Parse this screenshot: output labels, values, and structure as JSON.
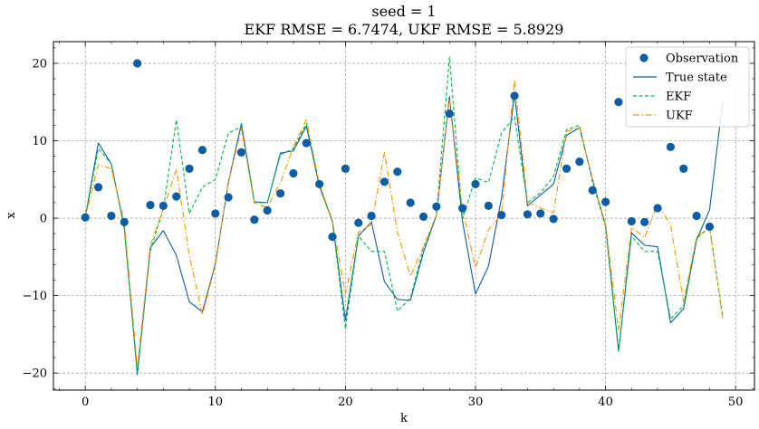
{
  "chart_data": {
    "type": "line",
    "title": "seed = 1",
    "subtitle": "EKF RMSE = 6.7474, UKF RMSE = 5.8929",
    "xlabel": "k",
    "ylabel": "x",
    "xlim": [
      -2.45,
      51.45
    ],
    "ylim": [
      -22.2,
      22.8
    ],
    "xticks": [
      0,
      10,
      20,
      30,
      40,
      50
    ],
    "yticks": [
      -20,
      -10,
      0,
      10,
      20
    ],
    "grid": true,
    "legend_position": "top-right",
    "legend": [
      "Observation",
      "True state",
      "EKF",
      "UKF"
    ],
    "x": [
      0,
      1,
      2,
      3,
      4,
      5,
      6,
      7,
      8,
      9,
      10,
      11,
      12,
      13,
      14,
      15,
      16,
      17,
      18,
      19,
      20,
      21,
      22,
      23,
      24,
      25,
      26,
      27,
      28,
      29,
      30,
      31,
      32,
      33,
      34,
      35,
      36,
      37,
      38,
      39,
      40,
      41,
      42,
      43,
      44,
      45,
      46,
      47,
      48,
      49
    ],
    "series": [
      {
        "name": "Observation",
        "style": "scatter",
        "color": "#0C5DA5",
        "values": [
          0.1,
          4.0,
          0.3,
          -0.5,
          20.0,
          1.7,
          1.6,
          2.8,
          6.4,
          8.8,
          0.6,
          2.7,
          8.5,
          -0.2,
          1.0,
          3.2,
          5.8,
          9.7,
          4.4,
          -2.4,
          6.4,
          -0.6,
          0.3,
          4.7,
          6.0,
          2.0,
          0.2,
          1.5,
          13.5,
          1.3,
          4.4,
          1.6,
          0.4,
          15.8,
          0.5,
          0.6,
          -0.1,
          6.4,
          7.3,
          3.6,
          2.1,
          15.0,
          -0.4,
          -0.5,
          1.3,
          9.2,
          6.4,
          0.3,
          -1.1,
          null
        ]
      },
      {
        "name": "True state",
        "style": "solid",
        "color": "#0C5DA5",
        "values": [
          0.1,
          9.7,
          7.0,
          -1.2,
          -20.2,
          -3.8,
          -1.6,
          -4.8,
          -10.8,
          -12.1,
          -5.9,
          4.6,
          12.2,
          2.1,
          2.0,
          8.4,
          8.7,
          11.9,
          4.1,
          -0.4,
          -13.2,
          -2.3,
          -0.5,
          -8.2,
          -10.5,
          -10.6,
          -4.4,
          0.4,
          15.7,
          -0.4,
          -9.8,
          -6.2,
          2.6,
          16.0,
          1.6,
          3.0,
          4.4,
          10.7,
          11.7,
          5.0,
          -0.9,
          -17.2,
          -1.9,
          -3.5,
          -3.7,
          -13.5,
          -11.7,
          -2.8,
          1.1,
          15.0
        ]
      },
      {
        "name": "EKF",
        "style": "dashed",
        "color": "#00B945",
        "values": [
          0.1,
          9.0,
          7.0,
          -1.4,
          -20.0,
          -4.2,
          1.2,
          12.7,
          0.6,
          4.0,
          5.0,
          11.0,
          11.8,
          2.0,
          2.0,
          8.2,
          9.0,
          12.2,
          4.4,
          -0.5,
          -14.3,
          -2.3,
          -4.3,
          -4.3,
          -12.0,
          -10.3,
          -3.8,
          0.4,
          20.8,
          -0.1,
          5.2,
          4.6,
          11.0,
          13.1,
          2.0,
          3.3,
          5.4,
          11.4,
          12.0,
          4.7,
          -1.1,
          -17.2,
          -2.3,
          -4.3,
          -4.3,
          -13.0,
          -11.3,
          -2.6,
          -1.2,
          -12.6
        ]
      },
      {
        "name": "UKF",
        "style": "dashdot",
        "color": "#FF9500",
        "values": [
          0.1,
          6.9,
          6.4,
          -0.5,
          -19.2,
          -3.5,
          1.2,
          6.3,
          -4.8,
          -12.5,
          -6.1,
          4.6,
          11.6,
          1.9,
          1.4,
          4.6,
          9.2,
          12.7,
          4.4,
          -0.3,
          -9.8,
          -1.8,
          -0.8,
          8.5,
          -1.8,
          -7.5,
          -3.7,
          0.4,
          15.4,
          1.2,
          -6.4,
          -1.5,
          0.5,
          17.9,
          2.1,
          1.3,
          0.7,
          11.2,
          11.7,
          5.0,
          -0.8,
          -14.5,
          -1.2,
          -2.5,
          1.9,
          -0.9,
          -10.8,
          -2.4,
          -1.2,
          -12.9
        ]
      }
    ]
  }
}
